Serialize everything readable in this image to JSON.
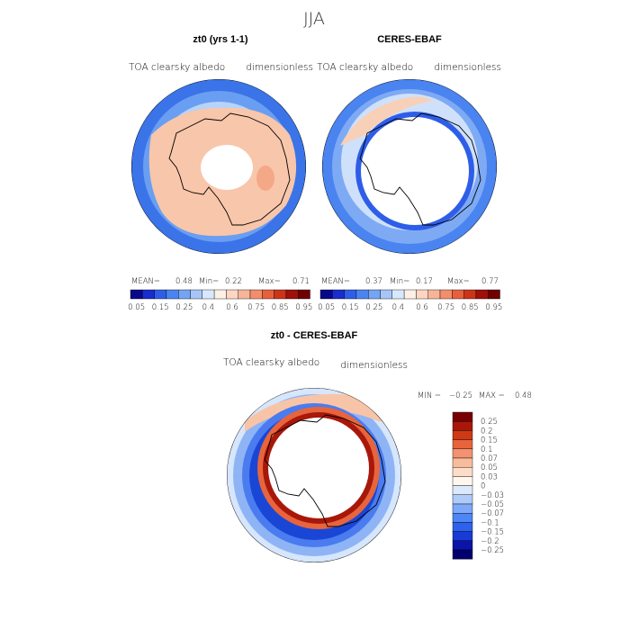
{
  "figure": {
    "season": "JJA",
    "variable": "TOA clearsky albedo",
    "units": "dimensionless"
  },
  "colors": {
    "abs_scale": [
      "#08088a",
      "#1a2ccc",
      "#2e5ee8",
      "#4a84f0",
      "#74a4f4",
      "#a6c6f8",
      "#d8e8fc",
      "#fdf0e6",
      "#fcd6c2",
      "#f8b498",
      "#f28e6c",
      "#e6603e",
      "#cc3418",
      "#a0100a",
      "#700000"
    ],
    "diff_scale": [
      "#00006e",
      "#0a14a8",
      "#1a3ad6",
      "#2e62ee",
      "#4e86f4",
      "#7ea8f8",
      "#aecbfa",
      "#dce9fc",
      "#fff7ee",
      "#fdddc8",
      "#f8bc9c",
      "#f29270",
      "#e8643c",
      "#cf3a14",
      "#a8180a",
      "#780000"
    ]
  },
  "chart_data": [
    {
      "type": "heatmap",
      "title": "zt0 (yrs 1-1)",
      "left_subtitle": "TOA clearsky albedo",
      "right_subtitle": "dimensionless",
      "stats": {
        "mean_label": "MEAN=",
        "mean": "0.48",
        "min_label": "Min=",
        "min": "0.22",
        "max_label": "Max=",
        "max": "0.71"
      },
      "colorbar_labels": [
        "0.05",
        "0.15",
        "0.25",
        "0.4",
        "0.6",
        "0.75",
        "0.85",
        "0.95"
      ],
      "levels": [
        0.05,
        0.1,
        0.15,
        0.2,
        0.25,
        0.3,
        0.4,
        0.5,
        0.6,
        0.7,
        0.75,
        0.8,
        0.85,
        0.9,
        0.95
      ]
    },
    {
      "type": "heatmap",
      "title": "CERES-EBAF",
      "left_subtitle": "TOA clearsky albedo",
      "right_subtitle": "dimensionless",
      "stats": {
        "mean_label": "MEAN=",
        "mean": "0.37",
        "min_label": "Min=",
        "min": "0.17",
        "max_label": "Max=",
        "max": "0.77"
      },
      "colorbar_labels": [
        "0.05",
        "0.15",
        "0.25",
        "0.4",
        "0.6",
        "0.75",
        "0.85",
        "0.95"
      ],
      "levels": [
        0.05,
        0.1,
        0.15,
        0.2,
        0.25,
        0.3,
        0.4,
        0.5,
        0.6,
        0.7,
        0.75,
        0.8,
        0.85,
        0.9,
        0.95
      ]
    },
    {
      "type": "heatmap",
      "title": "zt0 - CERES-EBAF",
      "left_subtitle": "TOA clearsky albedo",
      "right_subtitle": "dimensionless",
      "stats": {
        "min_label": "MIN =",
        "min": "−0.25",
        "max_label": "MAX =",
        "max": "0.48"
      },
      "colorbar_labels": [
        "0.25",
        "0.2",
        "0.15",
        "0.1",
        "0.07",
        "0.05",
        "0.03",
        "0",
        "−0.03",
        "−0.05",
        "−0.07",
        "−0.1",
        "−0.15",
        "−0.2",
        "−0.25"
      ],
      "levels": [
        0.25,
        0.2,
        0.15,
        0.1,
        0.07,
        0.05,
        0.03,
        0,
        -0.03,
        -0.05,
        -0.07,
        -0.1,
        -0.15,
        -0.2,
        -0.25
      ]
    }
  ]
}
